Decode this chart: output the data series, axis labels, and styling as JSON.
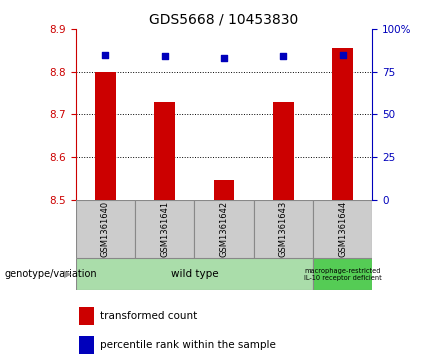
{
  "title": "GDS5668 / 10453830",
  "samples": [
    "GSM1361640",
    "GSM1361641",
    "GSM1361642",
    "GSM1361643",
    "GSM1361644"
  ],
  "bar_values": [
    8.8,
    8.73,
    8.545,
    8.73,
    8.855
  ],
  "bar_base": 8.5,
  "percentile_values": [
    85,
    84,
    83,
    84,
    85
  ],
  "ylim_left": [
    8.5,
    8.9
  ],
  "ylim_right": [
    0,
    100
  ],
  "yticks_left": [
    8.5,
    8.6,
    8.7,
    8.8,
    8.9
  ],
  "yticks_right": [
    0,
    25,
    50,
    75,
    100
  ],
  "bar_color": "#cc0000",
  "dot_color": "#0000bb",
  "group1_label": "wild type",
  "group2_label": "macrophage-restricted\nIL-10 receptor deficient",
  "group1_color": "#aaddaa",
  "group2_color": "#55cc55",
  "legend_red": "transformed count",
  "legend_blue": "percentile rank within the sample",
  "genotype_label": "genotype/variation",
  "title_fontsize": 10,
  "tick_fontsize": 7.5,
  "legend_fontsize": 7.5,
  "bar_width": 0.35
}
